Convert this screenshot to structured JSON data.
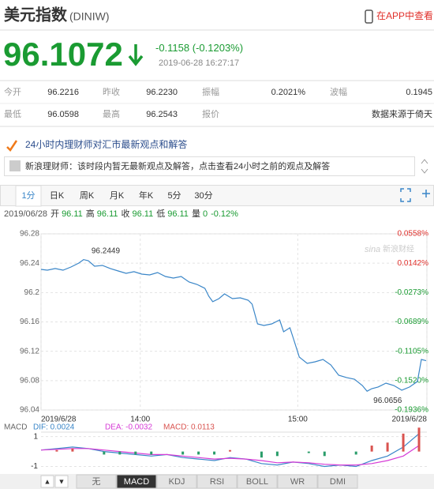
{
  "header": {
    "title": "美元指数",
    "code": "(DINIW)",
    "app_link": "在APP中查看"
  },
  "quote": {
    "price": "96.1072",
    "change": "-0.1158",
    "change_pct": "(-0.1203%)",
    "time": "2019-06-28 16:27:17"
  },
  "stats": {
    "rows": [
      [
        {
          "label": "今开",
          "value": "96.2216"
        },
        {
          "label": "昨收",
          "value": "96.2230"
        },
        {
          "label": "振幅",
          "value": "0.2021%"
        },
        {
          "label": "波幅",
          "value": "0.1945"
        }
      ],
      [
        {
          "label": "最低",
          "value": "96.0598"
        },
        {
          "label": "最高",
          "value": "96.2543"
        },
        {
          "label": "报价"
        }
      ]
    ],
    "source": "数据来源于倚天"
  },
  "news": {
    "heading": "24小时内理财师对汇市最新观点和解答",
    "notice": "新浪理财师：该时段内暂无最新观点及解答，点击查看24小时之前的观点及解答"
  },
  "tabs": {
    "items": [
      "1分",
      "日K",
      "周K",
      "月K",
      "年K",
      "5分",
      "30分"
    ],
    "active": 0
  },
  "info": {
    "date": "2019/06/28",
    "items": [
      {
        "label": "开",
        "value": "96.11"
      },
      {
        "label": "高",
        "value": "96.11"
      },
      {
        "label": "收",
        "value": "96.11"
      },
      {
        "label": "低",
        "value": "96.11"
      },
      {
        "label": "量",
        "value": "0"
      }
    ],
    "change": "-0.12%"
  },
  "watermark": {
    "logo": "sina",
    "text": "新浪财经"
  },
  "chart_data": [
    {
      "type": "line",
      "x": [
        0,
        4,
        9,
        14,
        19,
        24,
        27,
        30,
        34,
        39,
        44,
        49,
        54,
        59,
        64,
        69,
        74,
        79,
        84,
        89,
        94,
        99,
        104,
        106.5,
        109,
        113,
        116.5,
        121.5,
        126.5,
        131.5,
        134,
        137.5,
        141.5,
        146.5,
        151.5,
        154,
        158,
        160.5,
        164,
        169,
        174,
        179,
        184,
        189,
        194,
        199,
        204,
        207,
        210,
        214,
        219,
        224,
        229,
        234,
        239,
        241.5,
        244.5
      ],
      "series": [
        {
          "name": "美元指数",
          "color": "#3a86c8",
          "values": [
            96.2316,
            96.2305,
            96.2327,
            96.2305,
            96.2348,
            96.2402,
            96.2449,
            96.2434,
            96.2359,
            96.237,
            96.2327,
            96.2294,
            96.2262,
            96.2284,
            96.2251,
            96.224,
            96.2273,
            96.2219,
            96.2197,
            96.2219,
            96.2144,
            96.2111,
            96.2058,
            96.195,
            96.1875,
            96.1918,
            96.1982,
            96.1918,
            96.1928,
            96.1896,
            96.1842,
            96.1573,
            96.1552,
            96.1573,
            96.1627,
            96.1466,
            96.152,
            96.1358,
            96.1121,
            96.1035,
            96.1057,
            96.1089,
            96.1014,
            96.0874,
            96.0842,
            96.082,
            96.0734,
            96.0656,
            96.0691,
            96.0713,
            96.0766,
            96.0734,
            96.067,
            96.0713,
            96.0788,
            96.1089,
            96.1072
          ]
        }
      ],
      "xlim": [
        0,
        245
      ],
      "xticks": [
        {
          "value": 0,
          "label": "2019/6/28"
        },
        {
          "value": 63,
          "label": "14:00"
        },
        {
          "value": 163,
          "label": "15:00"
        },
        {
          "value": 245,
          "label": "2019/6/28"
        }
      ],
      "ylim": [
        96.04,
        96.28
      ],
      "yticks": [
        96.28,
        96.24,
        96.2,
        96.16,
        96.12,
        96.08,
        96.04
      ],
      "y2lim": [
        -0.1936,
        0.0558
      ],
      "y2ticks": [
        {
          "value": 0.0558,
          "label": "0.0558%"
        },
        {
          "value": 0.0142,
          "label": "0.0142%"
        },
        {
          "value": -0.0273,
          "label": "-0.0273%"
        },
        {
          "value": -0.0689,
          "label": "-0.0689%"
        },
        {
          "value": -0.1105,
          "label": "-0.1105%"
        },
        {
          "value": -0.152,
          "label": "-0.1520%"
        },
        {
          "value": -0.1936,
          "label": "-0.1936%"
        }
      ],
      "up_color": "#e0302b",
      "down_color": "#1a9b32",
      "grid": true,
      "annotations": [
        {
          "text": "96.2449",
          "x": 27,
          "y": 96.2449
        },
        {
          "text": "96.0656",
          "x": 207,
          "y": 96.0656
        }
      ]
    },
    {
      "type": "macd",
      "title": "MACD",
      "x": [
        0,
        10,
        20,
        30,
        40,
        50,
        60,
        70,
        80,
        90,
        100,
        110,
        120,
        130,
        140,
        150,
        160,
        170,
        180,
        190,
        200,
        210,
        220,
        230,
        240
      ],
      "series": [
        {
          "name": "DIF: 0.0024",
          "color": "#3a86c8",
          "style": "line",
          "values": [
            0.1,
            0.2,
            0.3,
            0.2,
            0,
            -0.1,
            -0.2,
            -0.3,
            -0.2,
            -0.4,
            -0.5,
            -0.6,
            -0.4,
            -0.5,
            -0.8,
            -0.9,
            -0.7,
            -0.8,
            -1.0,
            -0.9,
            -1.0,
            -0.6,
            -0.3,
            0.3,
            1.2
          ]
        },
        {
          "name": "DEA: -0.0032",
          "color": "#d63bd6",
          "style": "line",
          "values": [
            0.1,
            0.15,
            0.2,
            0.2,
            0.1,
            0,
            -0.1,
            -0.2,
            -0.2,
            -0.3,
            -0.4,
            -0.5,
            -0.45,
            -0.5,
            -0.6,
            -0.75,
            -0.7,
            -0.75,
            -0.85,
            -0.9,
            -0.9,
            -0.8,
            -0.6,
            -0.3,
            0.4
          ]
        },
        {
          "name": "MACD: 0.0113",
          "color": "#d9534f",
          "style": "bar",
          "values": [
            0,
            0.1,
            0.2,
            0,
            -0.2,
            -0.2,
            -0.2,
            -0.2,
            0,
            -0.2,
            -0.2,
            -0.2,
            0.1,
            0,
            -0.4,
            -0.3,
            0,
            -0.1,
            -0.3,
            0,
            -0.2,
            0.4,
            0.6,
            1.2,
            1.6
          ]
        }
      ],
      "down_color": "#2a9d6a",
      "xlim": [
        0,
        245
      ],
      "ylim": [
        -1.5,
        1.3
      ],
      "yticks": [
        1,
        -1
      ]
    }
  ],
  "controls": {
    "arrows": [
      "▲",
      "▼"
    ],
    "tabs": [
      "无",
      "MACD",
      "KDJ",
      "RSI",
      "BOLL",
      "WR",
      "DMI"
    ],
    "active": 1
  }
}
